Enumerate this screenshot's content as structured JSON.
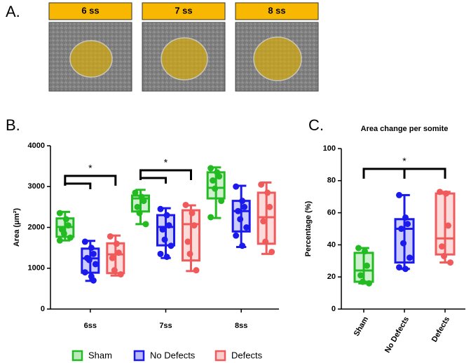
{
  "panel_a": {
    "label": "A.",
    "images": [
      "6 ss",
      "7 ss",
      "8 ss"
    ]
  },
  "chart_data": [
    {
      "type": "box",
      "panel_label": "B.",
      "y_label": "Area (μm²)",
      "categories": [
        "6ss",
        "7ss",
        "8ss"
      ],
      "ylim": [
        0,
        4000
      ],
      "yticks": [
        0,
        1000,
        2000,
        3000,
        4000
      ],
      "annotations": [
        "*",
        "*"
      ],
      "series": [
        {
          "name": "Sham",
          "color": "#22bb22",
          "min": [
            1680,
            2080,
            2230
          ],
          "q1": [
            1770,
            2390,
            2710
          ],
          "median": [
            2010,
            2710,
            2970
          ],
          "q3": [
            2220,
            2780,
            3350
          ],
          "max": [
            2380,
            2920,
            3470
          ],
          "points": [
            [
              2350,
              2200,
              2050,
              1950,
              1850,
              1750,
              1680
            ],
            [
              2850,
              2750,
              2650,
              2500,
              2350,
              2080
            ],
            [
              3450,
              3350,
              3250,
              3150,
              2950,
              2650,
              2250
            ]
          ]
        },
        {
          "name": "No Defects",
          "color": "#1a1aee",
          "min": [
            690,
            1250,
            1520
          ],
          "q1": [
            890,
            1560,
            1900
          ],
          "median": [
            1240,
            2010,
            2400
          ],
          "q3": [
            1480,
            2300,
            2650
          ],
          "max": [
            1670,
            2470,
            3020
          ],
          "points": [
            [
              1650,
              1500,
              1350,
              1250,
              1200,
              1100,
              900,
              800,
              700
            ],
            [
              2450,
              2300,
              2050,
              1950,
              1700,
              1550,
              1350,
              1280
            ],
            [
              3000,
              2650,
              2500,
              2400,
              2200,
              2000,
              1800,
              1550
            ]
          ]
        },
        {
          "name": "Defects",
          "color": "#f05a5a",
          "min": [
            820,
            930,
            1350
          ],
          "q1": [
            880,
            1190,
            1600
          ],
          "median": [
            1340,
            2080,
            2250
          ],
          "q3": [
            1610,
            2420,
            2850
          ],
          "max": [
            1800,
            2540,
            3100
          ],
          "points": [
            [
              1780,
              1600,
              1380,
              1250,
              950,
              850
            ],
            [
              2550,
              2350,
              2050,
              1650,
              1350,
              950
            ],
            [
              3050,
              2850,
              2500,
              2150,
              1650,
              1400
            ]
          ]
        }
      ]
    },
    {
      "type": "box",
      "panel_label": "C.",
      "title": "Area change per somite",
      "y_label": "Percentage (%)",
      "categories": [
        "Sham",
        "No Defects",
        "Defects"
      ],
      "ylim": [
        0,
        100
      ],
      "yticks": [
        0,
        20,
        40,
        60,
        80,
        100
      ],
      "annotations": [
        "*"
      ],
      "series": [
        {
          "colors": [
            "#22bb22",
            "#1a1aee",
            "#f05a5a"
          ],
          "min": [
            16,
            25,
            29
          ],
          "q1": [
            17,
            29,
            34
          ],
          "median": [
            24,
            50,
            44
          ],
          "q3": [
            35,
            56,
            72
          ],
          "max": [
            38,
            71,
            73
          ],
          "points": [
            [
              38,
              36,
              27,
              21,
              17,
              16
            ],
            [
              71,
              57,
              53,
              50,
              41,
              32,
              26,
              25
            ],
            [
              73,
              72,
              52,
              39,
              33,
              29
            ]
          ]
        }
      ]
    }
  ]
}
